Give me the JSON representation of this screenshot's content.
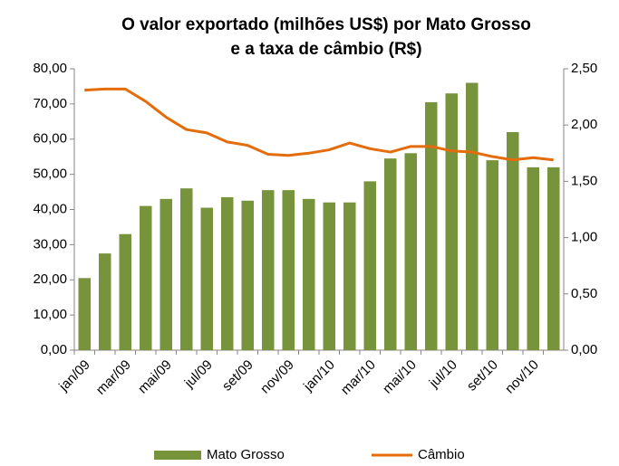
{
  "chart_data": {
    "type": "bar-line",
    "title": [
      "O valor exportado (milhões US$) por Mato Grosso",
      "e a taxa de câmbio (R$)"
    ],
    "categories": [
      "jan/09",
      null,
      "mar/09",
      null,
      "mai/09",
      null,
      "jul/09",
      null,
      "set/09",
      null,
      "nov/09",
      null,
      "jan/10",
      null,
      "mar/10",
      null,
      "mai/10",
      null,
      "jul/10",
      null,
      "set/10",
      null,
      "nov/10",
      null
    ],
    "series": [
      {
        "name": "Mato Grosso",
        "type": "bar",
        "color": "#77933c",
        "values": [
          20.5,
          27.5,
          33,
          41,
          43,
          46,
          40.5,
          43.5,
          42.5,
          45.5,
          45.5,
          43,
          42,
          42,
          48,
          54.5,
          56,
          70.5,
          73,
          76,
          54,
          62,
          52,
          52
        ]
      },
      {
        "name": "Câmbio",
        "type": "line",
        "axis": "y2",
        "color": "#e46c0a",
        "values": [
          2.31,
          2.32,
          2.32,
          2.21,
          2.07,
          1.96,
          1.93,
          1.85,
          1.82,
          1.74,
          1.73,
          1.75,
          1.78,
          1.84,
          1.79,
          1.76,
          1.81,
          1.81,
          1.77,
          1.76,
          1.72,
          1.69,
          1.71,
          1.69
        ]
      }
    ],
    "ylim": [
      0,
      80
    ],
    "yticks": [
      {
        "value": 0,
        "label": "0,00"
      },
      {
        "value": 10,
        "label": "10,00"
      },
      {
        "value": 20,
        "label": "20,00"
      },
      {
        "value": 30,
        "label": "30,00"
      },
      {
        "value": 40,
        "label": "40,00"
      },
      {
        "value": 50,
        "label": "50,00"
      },
      {
        "value": 60,
        "label": "60,00"
      },
      {
        "value": 70,
        "label": "70,00"
      },
      {
        "value": 80,
        "label": "80,00"
      }
    ],
    "y2lim": [
      0,
      2.5
    ],
    "y2ticks": [
      {
        "value": 0,
        "label": "0,00"
      },
      {
        "value": 0.5,
        "label": "0,50"
      },
      {
        "value": 1,
        "label": "1,00"
      },
      {
        "value": 1.5,
        "label": "1,50"
      },
      {
        "value": 2,
        "label": "2,00"
      },
      {
        "value": 2.5,
        "label": "2,50"
      }
    ],
    "grid": false,
    "legend": "bottom"
  }
}
